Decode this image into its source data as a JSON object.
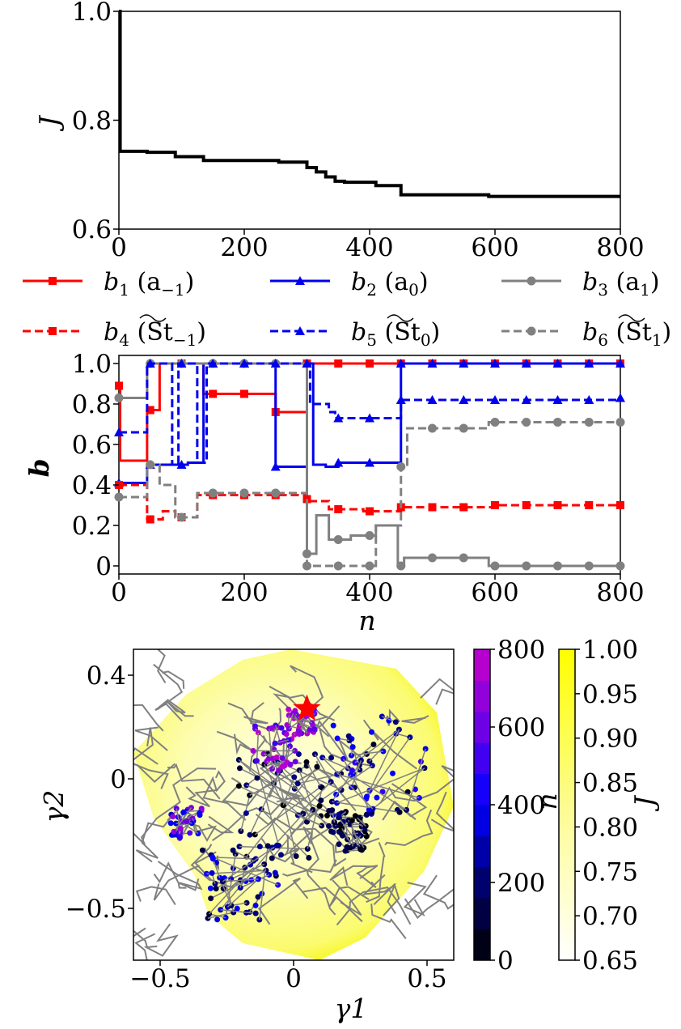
{
  "chart_data": [
    {
      "type": "line",
      "panel": "top",
      "ylabel": "J",
      "xlim": [
        0,
        800
      ],
      "ylim": [
        0.6,
        1.0
      ],
      "xticks": [
        "0",
        "200",
        "400",
        "600",
        "800"
      ],
      "yticks": [
        "0.6",
        "0.8",
        "1.0"
      ],
      "series": [
        {
          "name": "J",
          "color": "#000000",
          "steps": [
            [
              0,
              1.0
            ],
            [
              2,
              0.743
            ],
            [
              45,
              0.741
            ],
            [
              90,
              0.733
            ],
            [
              135,
              0.726
            ],
            [
              255,
              0.723
            ],
            [
              300,
              0.713
            ],
            [
              315,
              0.705
            ],
            [
              330,
              0.696
            ],
            [
              345,
              0.688
            ],
            [
              360,
              0.686
            ],
            [
              410,
              0.68
            ],
            [
              450,
              0.663
            ],
            [
              590,
              0.66
            ],
            [
              800,
              0.66
            ]
          ]
        }
      ]
    },
    {
      "type": "line",
      "panel": "middle",
      "xlabel": "n",
      "ylabel": "b",
      "xlim": [
        0,
        800
      ],
      "ylim": [
        -0.04,
        1.04
      ],
      "xticks": [
        "0",
        "200",
        "400",
        "600",
        "800"
      ],
      "yticks": [
        "0",
        "0.2",
        "0.4",
        "0.6",
        "0.8",
        "1.0"
      ],
      "legend_location": "above",
      "series": [
        {
          "name": "b1 (a−1)",
          "label_main": "b",
          "label_sub": "1",
          "label_rest": " (a",
          "label_sub2": "−1",
          "label_end": ")",
          "color": "#ff0000",
          "dash": "solid",
          "marker": "square",
          "steps": [
            [
              0,
              0.89
            ],
            [
              2,
              0.52
            ],
            [
              45,
              0.77
            ],
            [
              65,
              1.0
            ],
            [
              135,
              0.85
            ],
            [
              250,
              0.76
            ],
            [
              300,
              1.0
            ],
            [
              800,
              1.0
            ]
          ]
        },
        {
          "name": "b2 (a0)",
          "label_main": "b",
          "label_sub": "2",
          "label_rest": " (a",
          "label_sub2": "0",
          "label_end": ")",
          "color": "#0000ee",
          "dash": "solid",
          "marker": "triangle",
          "steps": [
            [
              0,
              0.41
            ],
            [
              45,
              0.5
            ],
            [
              110,
              0.51
            ],
            [
              135,
              1.0
            ],
            [
              250,
              0.49
            ],
            [
              300,
              1.0
            ],
            [
              310,
              0.5
            ],
            [
              330,
              0.49
            ],
            [
              350,
              0.51
            ],
            [
              450,
              1.0
            ],
            [
              800,
              1.0
            ]
          ]
        },
        {
          "name": "b3 (a1)",
          "label_main": "b",
          "label_sub": "3",
          "label_rest": " (a",
          "label_sub2": "1",
          "label_end": ")",
          "color": "#808080",
          "dash": "solid",
          "marker": "circle",
          "steps": [
            [
              0,
              0.83
            ],
            [
              45,
              1.0
            ],
            [
              300,
              0.06
            ],
            [
              315,
              0.25
            ],
            [
              335,
              0.13
            ],
            [
              370,
              0.15
            ],
            [
              410,
              0.2
            ],
            [
              445,
              0.0
            ],
            [
              455,
              0.04
            ],
            [
              590,
              0.0
            ],
            [
              800,
              0.0
            ]
          ]
        },
        {
          "name": "b4 (St−1)",
          "label_main": "b",
          "label_sub": "4",
          "label_rest": " (St",
          "label_sub2": "−1",
          "label_end": ")",
          "tilde": true,
          "color": "#ff0000",
          "dash": "dashed",
          "marker": "square",
          "steps": [
            [
              0,
              0.4
            ],
            [
              45,
              0.23
            ],
            [
              70,
              0.27
            ],
            [
              90,
              0.24
            ],
            [
              125,
              0.35
            ],
            [
              300,
              0.33
            ],
            [
              305,
              0.32
            ],
            [
              335,
              0.28
            ],
            [
              390,
              0.27
            ],
            [
              450,
              0.29
            ],
            [
              600,
              0.3
            ],
            [
              800,
              0.3
            ]
          ]
        },
        {
          "name": "b5 (St0)",
          "label_main": "b",
          "label_sub": "5",
          "label_rest": " (St",
          "label_sub2": "0",
          "label_end": ")",
          "tilde": true,
          "color": "#0000ee",
          "dash": "dashed",
          "marker": "triangle",
          "steps": [
            [
              0,
              0.66
            ],
            [
              45,
              1.0
            ],
            [
              85,
              0.5
            ],
            [
              95,
              1.0
            ],
            [
              125,
              0.51
            ],
            [
              140,
              1.0
            ],
            [
              300,
              1.0
            ],
            [
              305,
              0.8
            ],
            [
              335,
              0.76
            ],
            [
              345,
              0.73
            ],
            [
              450,
              0.82
            ],
            [
              800,
              0.83
            ]
          ]
        },
        {
          "name": "b6 (St1)",
          "label_main": "b",
          "label_sub": "6",
          "label_rest": " (St",
          "label_sub2": "1",
          "label_end": ")",
          "tilde": true,
          "color": "#808080",
          "dash": "dashed",
          "marker": "circle",
          "steps": [
            [
              0,
              0.34
            ],
            [
              45,
              0.5
            ],
            [
              65,
              0.4
            ],
            [
              90,
              0.24
            ],
            [
              125,
              0.36
            ],
            [
              300,
              0.0
            ],
            [
              410,
              0.2
            ],
            [
              450,
              0.49
            ],
            [
              460,
              0.68
            ],
            [
              590,
              0.71
            ],
            [
              800,
              0.71
            ]
          ]
        }
      ]
    },
    {
      "type": "scatter",
      "panel": "bottom",
      "xlabel": "γ1",
      "ylabel": "γ2",
      "xlim": [
        -0.6,
        0.6
      ],
      "ylim": [
        -0.7,
        0.5
      ],
      "xticks": [
        "−0.5",
        "0",
        "0.5"
      ],
      "yticks": [
        "−0.5",
        "0",
        "0.4"
      ],
      "background": "contour of J (yellow shades) with grey contour lines",
      "best_point_marker": {
        "gamma1": 0.05,
        "gamma2": 0.27,
        "color": "#ff0000",
        "shape": "star"
      },
      "colorbar_n": {
        "label": "n",
        "range": [
          0,
          800
        ],
        "ticks": [
          "0",
          "200",
          "400",
          "600",
          "800"
        ]
      },
      "colorbar_J": {
        "label": "J",
        "range": [
          0.65,
          1.0
        ],
        "ticks": [
          "0.65",
          "0.70",
          "0.75",
          "0.80",
          "0.85",
          "0.90",
          "0.95",
          "1.00"
        ]
      }
    }
  ]
}
